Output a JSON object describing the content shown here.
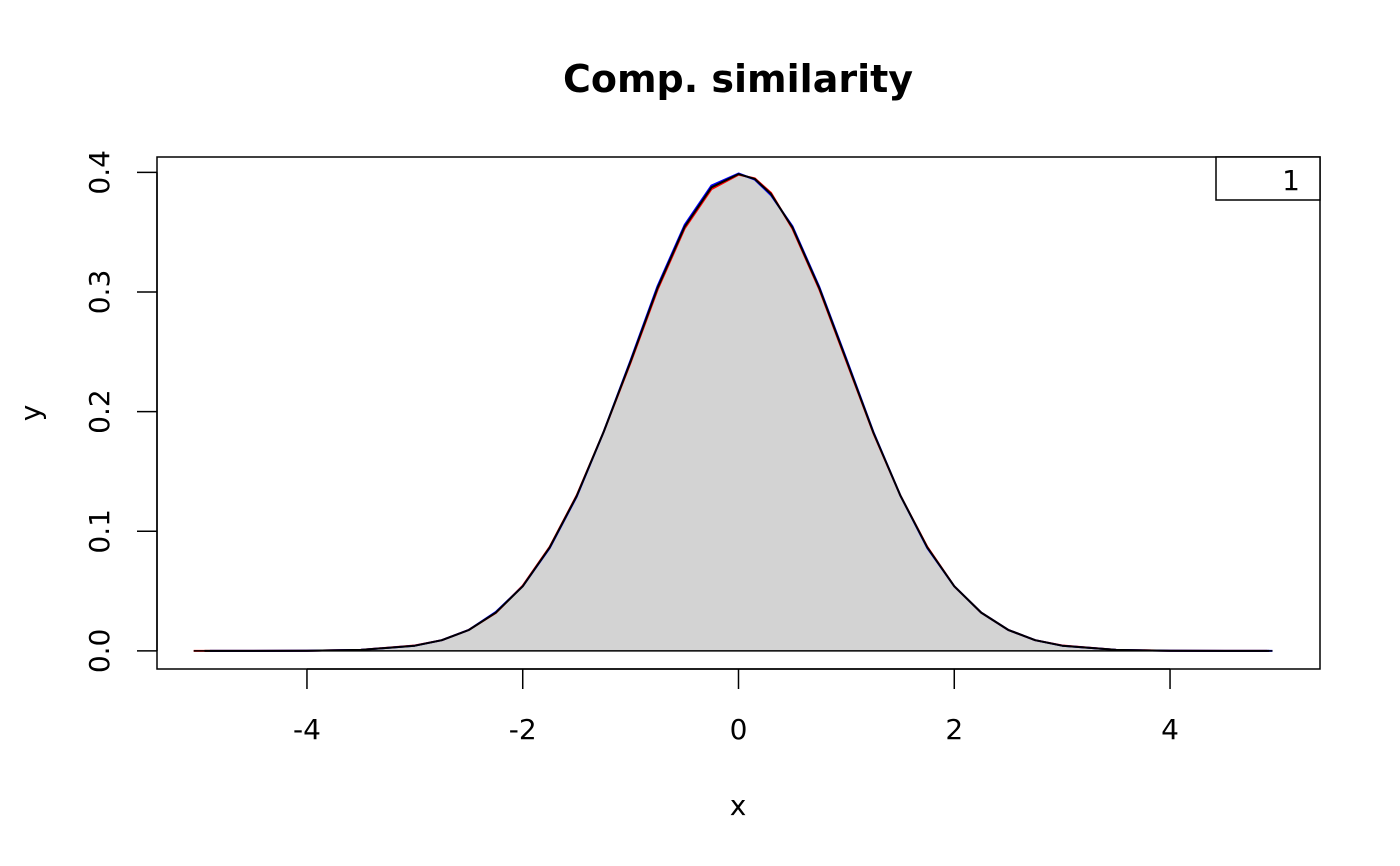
{
  "chart_data": {
    "type": "area",
    "title": "Comp. similarity",
    "xlabel": "x",
    "ylabel": "y",
    "xlim": [
      -5.39,
      5.39
    ],
    "ylim": [
      -0.0151,
      0.4128
    ],
    "xticks": [
      -4,
      -2,
      0,
      2,
      4
    ],
    "xtick_labels": [
      "-4",
      "-2",
      "0",
      "2",
      "4"
    ],
    "yticks": [
      0.0,
      0.1,
      0.2,
      0.3,
      0.4
    ],
    "ytick_labels": [
      "0.0",
      "0.1",
      "0.2",
      "0.3",
      "0.4"
    ],
    "grid": false,
    "legend": {
      "position": "top-right",
      "entries": [
        "1"
      ]
    },
    "fill_color": "#d3d3d3",
    "series": [
      {
        "color": "#ff0000",
        "x": [
          -5.05,
          -4.5,
          -4.0,
          -3.5,
          -3.0,
          -2.75,
          -2.5,
          -2.25,
          -2.0,
          -1.75,
          -1.5,
          -1.25,
          -1.0,
          -0.75,
          -0.5,
          -0.25,
          0.0,
          0.15,
          0.3,
          0.5,
          0.75,
          1.0,
          1.25,
          1.5,
          1.75,
          2.0,
          2.25,
          2.5,
          2.75,
          3.0,
          3.5,
          4.0,
          4.5,
          4.9
        ],
        "y": [
          0.0,
          0.0,
          0.0002,
          0.0009,
          0.0045,
          0.009,
          0.0176,
          0.0318,
          0.0545,
          0.087,
          0.13,
          0.183,
          0.241,
          0.302,
          0.353,
          0.386,
          0.398,
          0.395,
          0.383,
          0.353,
          0.302,
          0.242,
          0.182,
          0.13,
          0.087,
          0.054,
          0.032,
          0.0176,
          0.009,
          0.0045,
          0.0009,
          0.0002,
          0.0,
          0.0
        ]
      },
      {
        "color": "#0000ff",
        "x": [
          -4.9,
          -4.5,
          -4.0,
          -3.5,
          -3.0,
          -2.75,
          -2.5,
          -2.25,
          -2.0,
          -1.75,
          -1.5,
          -1.25,
          -1.0,
          -0.75,
          -0.5,
          -0.25,
          0.0,
          0.15,
          0.3,
          0.5,
          0.75,
          1.0,
          1.25,
          1.5,
          1.75,
          2.0,
          2.25,
          2.5,
          2.75,
          3.0,
          3.5,
          4.0,
          4.5,
          4.95
        ],
        "y": [
          0.0,
          0.0,
          0.0001,
          0.0009,
          0.0044,
          0.009,
          0.0176,
          0.0325,
          0.054,
          0.086,
          0.129,
          0.183,
          0.243,
          0.305,
          0.356,
          0.389,
          0.399,
          0.394,
          0.381,
          0.355,
          0.304,
          0.244,
          0.183,
          0.13,
          0.086,
          0.054,
          0.032,
          0.0176,
          0.009,
          0.0044,
          0.0009,
          0.0001,
          0.0,
          0.0
        ]
      },
      {
        "color": "#000000",
        "x": [
          -4.95,
          -4.5,
          -4.0,
          -3.5,
          -3.0,
          -2.75,
          -2.5,
          -2.25,
          -2.0,
          -1.75,
          -1.5,
          -1.25,
          -1.0,
          -0.75,
          -0.5,
          -0.25,
          0.0,
          0.15,
          0.3,
          0.5,
          0.75,
          1.0,
          1.25,
          1.5,
          1.75,
          2.0,
          2.25,
          2.5,
          2.75,
          3.0,
          3.5,
          4.0,
          4.5,
          4.92
        ],
        "y": [
          0.0,
          0.0,
          0.0001,
          0.0009,
          0.0044,
          0.009,
          0.0175,
          0.032,
          0.054,
          0.0865,
          0.1295,
          0.183,
          0.242,
          0.3035,
          0.3545,
          0.3875,
          0.3985,
          0.3945,
          0.382,
          0.354,
          0.303,
          0.243,
          0.1825,
          0.13,
          0.0865,
          0.054,
          0.032,
          0.0176,
          0.009,
          0.0044,
          0.0009,
          0.0001,
          0.0,
          0.0
        ]
      }
    ]
  }
}
